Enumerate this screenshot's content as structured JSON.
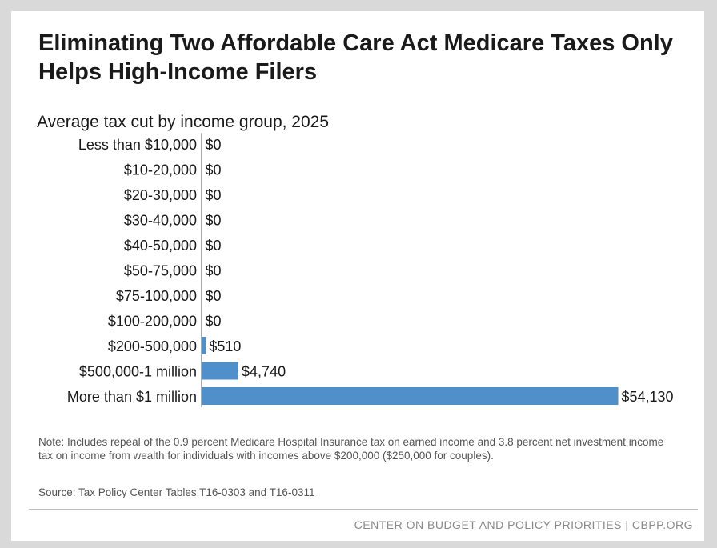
{
  "title": "Eliminating Two Affordable Care Act Medicare Taxes Only Helps High-Income Filers",
  "subtitle": "Average tax cut by income group, 2025",
  "note": "Note: Includes repeal of the 0.9 percent Medicare Hospital Insurance tax on earned income and 3.8 percent net investment income tax on income from wealth for individuals with incomes above $200,000 ($250,000 for couples).",
  "source": "Source: Tax Policy Center Tables T16-0303 and T16-0311",
  "footer": "CENTER ON BUDGET AND POLICY PRIORITIES | CBPP.ORG",
  "colors": {
    "bar": "#4f8fca",
    "axis": "#555555"
  },
  "chart_data": {
    "type": "bar",
    "orientation": "horizontal",
    "categories": [
      "Less than $10,000",
      "$10-20,000",
      "$20-30,000",
      "$30-40,000",
      "$40-50,000",
      "$50-75,000",
      "$75-100,000",
      "$100-200,000",
      "$200-500,000",
      "$500,000-1 million",
      "More than $1 million"
    ],
    "values": [
      0,
      0,
      0,
      0,
      0,
      0,
      0,
      0,
      510,
      4740,
      54130
    ],
    "value_labels": [
      "$0",
      "$0",
      "$0",
      "$0",
      "$0",
      "$0",
      "$0",
      "$0",
      "$510",
      "$4,740",
      "$54,130"
    ],
    "title": "Average tax cut by income group, 2025",
    "xlabel": "",
    "ylabel": "",
    "xlim": [
      0,
      54130
    ],
    "grid": false,
    "legend": "none"
  }
}
